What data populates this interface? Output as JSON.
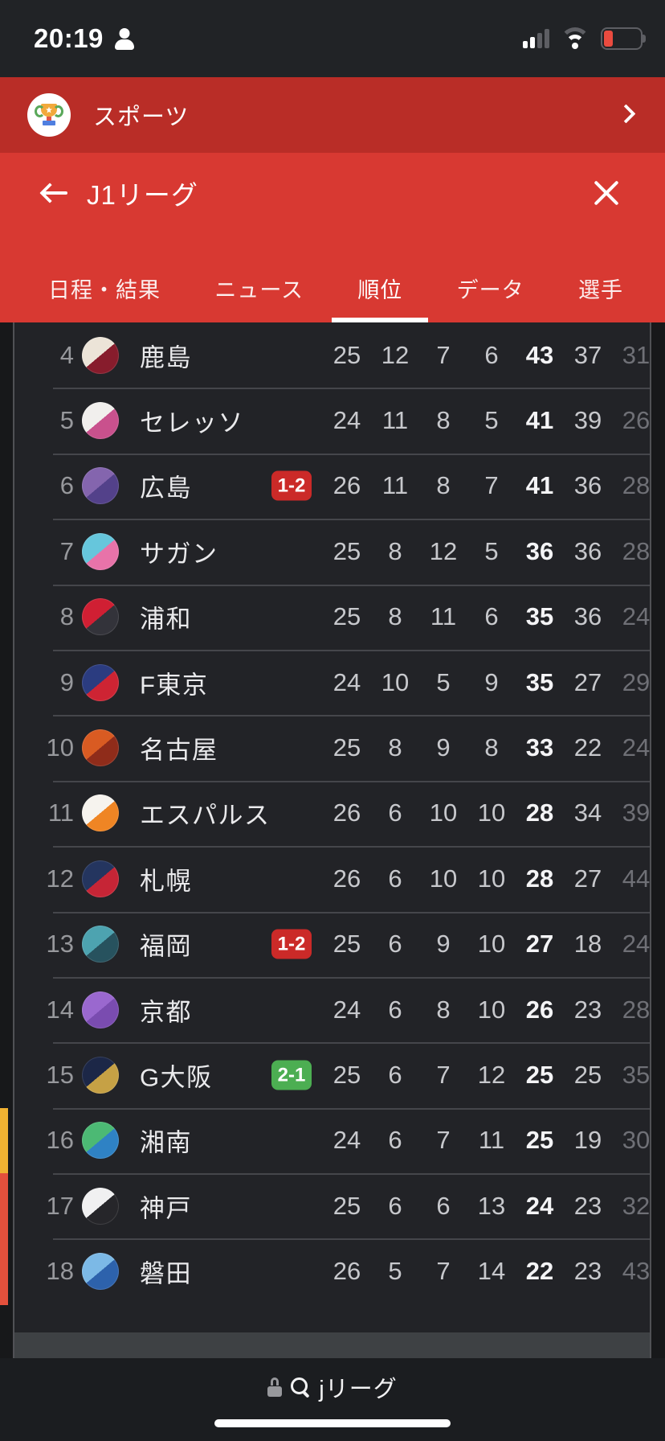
{
  "status_bar": {
    "time": "20:19"
  },
  "app_header": {
    "title": "スポーツ"
  },
  "subheader": {
    "title": "J1リーグ"
  },
  "tabs": [
    {
      "label": "日程・結果",
      "active": false
    },
    {
      "label": "ニュース",
      "active": false
    },
    {
      "label": "順位",
      "active": true
    },
    {
      "label": "データ",
      "active": false
    },
    {
      "label": "選手",
      "active": false
    }
  ],
  "standings": {
    "rows": [
      {
        "rank": "4",
        "team": "鹿島",
        "badge": null,
        "accent": null,
        "stats": [
          "25",
          "12",
          "7",
          "6",
          "43",
          "37",
          "31"
        ],
        "logo_style": "--c1:#ece4d8;--c2:#871c2c"
      },
      {
        "rank": "5",
        "team": "セレッソ",
        "badge": null,
        "accent": null,
        "stats": [
          "24",
          "11",
          "8",
          "5",
          "41",
          "39",
          "26"
        ],
        "logo_style": "--c1:#f1efed;--c2:#c9518d"
      },
      {
        "rank": "6",
        "team": "広島",
        "badge": {
          "text": "1-2",
          "color": "red"
        },
        "accent": null,
        "stats": [
          "26",
          "11",
          "8",
          "7",
          "41",
          "36",
          "28"
        ],
        "logo_style": "--c1:#8465ae;--c2:#53418a"
      },
      {
        "rank": "7",
        "team": "サガン",
        "badge": null,
        "accent": null,
        "stats": [
          "25",
          "8",
          "12",
          "5",
          "36",
          "36",
          "28"
        ],
        "logo_style": "--c1:#66c6dc;--c2:#e873a9"
      },
      {
        "rank": "8",
        "team": "浦和",
        "badge": null,
        "accent": null,
        "stats": [
          "25",
          "8",
          "11",
          "6",
          "35",
          "36",
          "24"
        ],
        "logo_style": "--c1:#d01f33;--c2:#33333a"
      },
      {
        "rank": "9",
        "team": "F東京",
        "badge": null,
        "accent": null,
        "stats": [
          "24",
          "10",
          "5",
          "9",
          "35",
          "27",
          "29"
        ],
        "logo_style": "--c1:#2b3c80;--c2:#ce2433"
      },
      {
        "rank": "10",
        "team": "名古屋",
        "badge": null,
        "accent": null,
        "stats": [
          "25",
          "8",
          "9",
          "8",
          "33",
          "22",
          "24"
        ],
        "logo_style": "--c1:#d95b22;--c2:#8f2c1a"
      },
      {
        "rank": "11",
        "team": "エスパルス",
        "badge": null,
        "accent": null,
        "stats": [
          "26",
          "6",
          "10",
          "10",
          "28",
          "34",
          "39"
        ],
        "logo_style": "--c1:#f6f3ee;--c2:#ef8524"
      },
      {
        "rank": "12",
        "team": "札幌",
        "badge": null,
        "accent": null,
        "stats": [
          "26",
          "6",
          "10",
          "10",
          "28",
          "27",
          "44"
        ],
        "logo_style": "--c1:#24355f;--c2:#c62536"
      },
      {
        "rank": "13",
        "team": "福岡",
        "badge": {
          "text": "1-2",
          "color": "red"
        },
        "accent": null,
        "stats": [
          "25",
          "6",
          "9",
          "10",
          "27",
          "18",
          "24"
        ],
        "logo_style": "--c1:#4da3b0;--c2:#27525e"
      },
      {
        "rank": "14",
        "team": "京都",
        "badge": null,
        "accent": null,
        "stats": [
          "24",
          "6",
          "8",
          "10",
          "26",
          "23",
          "28"
        ],
        "logo_style": "--c1:#9a68cf;--c2:#7a4cb0"
      },
      {
        "rank": "15",
        "team": "G大阪",
        "badge": {
          "text": "2-1",
          "color": "green"
        },
        "accent": null,
        "stats": [
          "25",
          "6",
          "7",
          "12",
          "25",
          "25",
          "35"
        ],
        "logo_style": "--c1:#1c2747;--c2:#c6a145"
      },
      {
        "rank": "16",
        "team": "湘南",
        "badge": null,
        "accent": "yellow",
        "stats": [
          "24",
          "6",
          "7",
          "11",
          "25",
          "19",
          "30"
        ],
        "logo_style": "--c1:#4cb974;--c2:#2f82c4"
      },
      {
        "rank": "17",
        "team": "神戸",
        "badge": null,
        "accent": "red",
        "stats": [
          "25",
          "6",
          "6",
          "13",
          "24",
          "23",
          "32"
        ],
        "logo_style": "--c1:#f0f0f1;--c2:#26262a"
      },
      {
        "rank": "18",
        "team": "磐田",
        "badge": null,
        "accent": "red",
        "stats": [
          "26",
          "5",
          "7",
          "14",
          "22",
          "23",
          "43"
        ],
        "logo_style": "--c1:#7cb9e6;--c2:#2d62ac"
      }
    ]
  },
  "footer": {
    "search_text": "jリーグ"
  },
  "colors": {
    "header_red_dark": "#b92d27",
    "header_red": "#d83932",
    "badge_red": "#cb2a28",
    "badge_green": "#4cae52",
    "zone_yellow": "#f0b232",
    "zone_red": "#e4503c",
    "battery_low_red": "#ea4b3f",
    "tab_underline": "#ffffff"
  }
}
